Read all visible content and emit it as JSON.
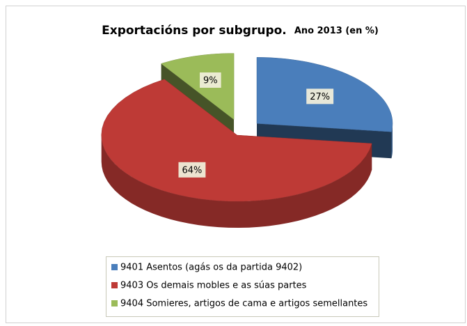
{
  "chart_data": {
    "type": "pie",
    "title": "Exportacións por subgrupo.",
    "subtitle": "Ano 2013 (en %)",
    "categories": [
      "9401 Asentos (agás os da partida 9402)",
      "9403 Os demais mobles e as súas partes",
      "9404 Somieres, artigos de cama e artigos semellantes"
    ],
    "values": [
      27,
      64,
      9
    ],
    "value_labels": [
      "27%",
      "64%",
      "9%"
    ],
    "colors": [
      "#4a7ebb",
      "#be3a36",
      "#9bbb59"
    ]
  }
}
